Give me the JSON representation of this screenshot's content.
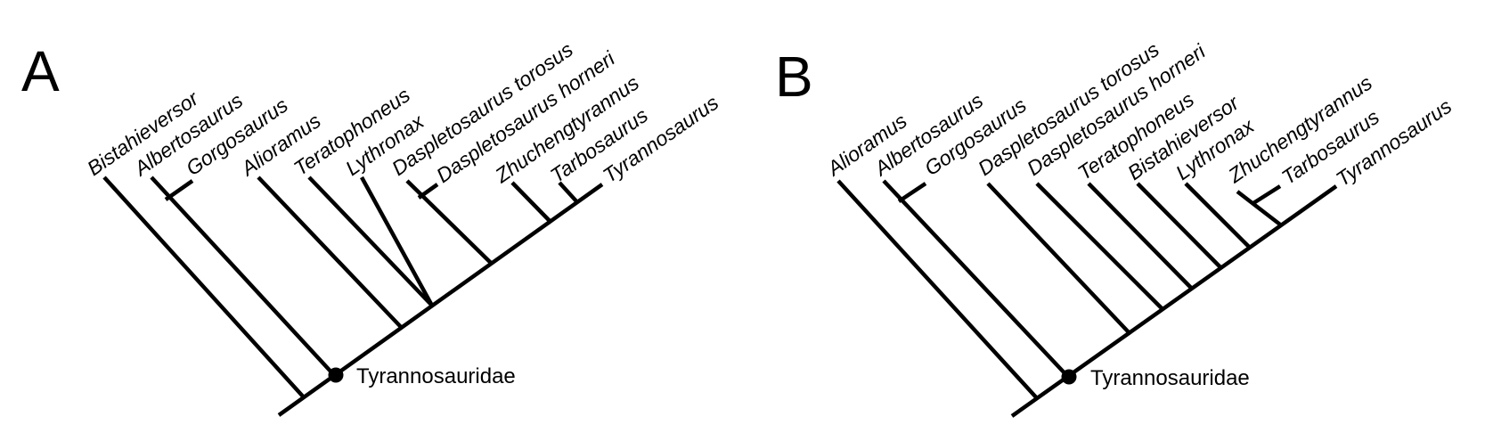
{
  "panels": [
    {
      "letter": "A",
      "node_label": "Tyrannosauridae",
      "taxa": [
        "Bistahieversor",
        "Albertosaurus",
        "Gorgosaurus",
        "Alioramus",
        "Teratophoneus",
        "Lythronax",
        "Daspletosaurus torosus",
        "Daspletosaurus horneri",
        "Zhuchengtyrannus",
        "Tarbosaurus",
        "Tyrannosaurus"
      ]
    },
    {
      "letter": "B",
      "node_label": "Tyrannosauridae",
      "taxa": [
        "Alioramus",
        "Albertosaurus",
        "Gorgosaurus",
        "Daspletosaurus torosus",
        "Daspletosaurus horneri",
        "Teratophoneus",
        "Bistahieversor",
        "Lythronax",
        "Zhuchengtyrannus",
        "Tarbosaurus",
        "Tyrannosaurus"
      ]
    }
  ]
}
